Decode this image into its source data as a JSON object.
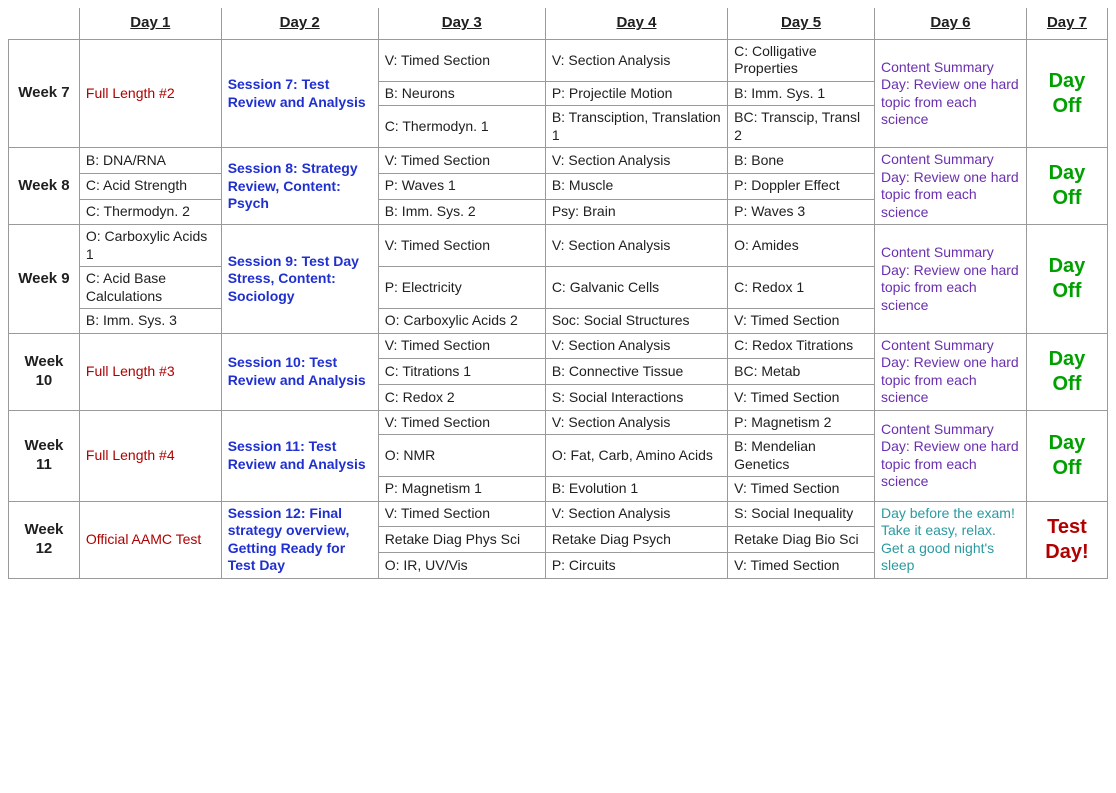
{
  "colors": {
    "text_default": "#202020",
    "red": "#b00000",
    "blue": "#2030d0",
    "purple": "#6a2fb0",
    "teal": "#2a9aa0",
    "green": "#00a000",
    "border": "#9a9a9a",
    "background": "#ffffff"
  },
  "headers": [
    "",
    "Day 1",
    "Day 2",
    "Day 3",
    "Day 4",
    "Day 5",
    "Day 6",
    "Day 7"
  ],
  "content_summary_text": "Content Summary Day: Review one hard topic from each science",
  "day_off_text": "Day Off",
  "weeks": [
    {
      "label": "Week 7",
      "day1": {
        "text": "Full Length #2",
        "color": "red"
      },
      "day2": {
        "text": "Session 7: Test Review and Analysis",
        "color": "blue"
      },
      "rows": [
        {
          "d3": "V: Timed Section",
          "d4": "V: Section Analysis",
          "d5": "C: Colligative Properties"
        },
        {
          "d3": "B: Neurons",
          "d4": "P: Projectile Motion",
          "d5": "B: Imm. Sys. 1"
        },
        {
          "d3": "C: Thermodyn. 1",
          "d4": "B: Transciption, Translation 1",
          "d5": "BC: Transcip, Transl 2"
        }
      ],
      "day6": {
        "text_key": "content_summary",
        "color": "purple"
      },
      "day7": {
        "text": "Day Off",
        "color": "green"
      }
    },
    {
      "label": "Week 8",
      "day1_rows": [
        "B: DNA/RNA",
        "C: Acid Strength",
        "C: Thermodyn. 2"
      ],
      "day2": {
        "text": "Session 8: Strategy Review, Content: Psych",
        "color": "blue"
      },
      "rows": [
        {
          "d3": "V: Timed Section",
          "d4": "V: Section Analysis",
          "d5": "B: Bone"
        },
        {
          "d3": "P: Waves 1",
          "d4": "B: Muscle",
          "d5": "P: Doppler Effect"
        },
        {
          "d3": "B: Imm. Sys. 2",
          "d4": "Psy: Brain",
          "d5": "P: Waves 3"
        }
      ],
      "day6": {
        "text_key": "content_summary",
        "color": "purple"
      },
      "day7": {
        "text": "Day Off",
        "color": "green"
      }
    },
    {
      "label": "Week 9",
      "day1_rows": [
        "O: Carboxylic Acids 1",
        "C: Acid Base Calculations",
        "B: Imm. Sys. 3"
      ],
      "day2": {
        "text": "Session 9: Test Day Stress, Content: Sociology",
        "color": "blue"
      },
      "rows": [
        {
          "d3": "V: Timed Section",
          "d4": "V: Section Analysis",
          "d5": "O: Amides"
        },
        {
          "d3": "P: Electricity",
          "d4": "C: Galvanic Cells",
          "d5": "C: Redox 1"
        },
        {
          "d3": "O: Carboxylic Acids 2",
          "d4": "Soc: Social Structures",
          "d5": "V: Timed Section"
        }
      ],
      "day6": {
        "text_key": "content_summary",
        "color": "purple"
      },
      "day7": {
        "text": "Day Off",
        "color": "green"
      }
    },
    {
      "label": "Week 10",
      "day1": {
        "text": "Full Length #3",
        "color": "red"
      },
      "day2": {
        "text": "Session 10: Test Review and Analysis",
        "color": "blue"
      },
      "rows": [
        {
          "d3": "V: Timed Section",
          "d4": "V: Section Analysis",
          "d5": "C: Redox Titrations"
        },
        {
          "d3": "C: Titrations 1",
          "d4": "B: Connective Tissue",
          "d5": "BC: Metab"
        },
        {
          "d3": "C: Redox 2",
          "d4": "S: Social Interactions",
          "d5": "V: Timed Section"
        }
      ],
      "day6": {
        "text_key": "content_summary",
        "color": "purple"
      },
      "day7": {
        "text": "Day Off",
        "color": "green"
      }
    },
    {
      "label": "Week 11",
      "day1": {
        "text": "Full Length #4",
        "color": "red"
      },
      "day2": {
        "text": "Session 11: Test Review and Analysis",
        "color": "blue"
      },
      "rows": [
        {
          "d3": "V: Timed Section",
          "d4": "V: Section Analysis",
          "d5": "P: Magnetism 2"
        },
        {
          "d3": "O: NMR",
          "d4": "O: Fat, Carb, Amino Acids",
          "d5": "B: Mendelian Genetics"
        },
        {
          "d3": "P: Magnetism 1",
          "d4": "B: Evolution 1",
          "d5": "V: Timed Section"
        }
      ],
      "day6": {
        "text_key": "content_summary",
        "color": "purple"
      },
      "day7": {
        "text": "Day Off",
        "color": "green"
      }
    },
    {
      "label": "Week 12",
      "day1": {
        "text": "Official AAMC Test",
        "color": "red"
      },
      "day2": {
        "text": "Session 12: Final strategy overview, Getting Ready for Test Day",
        "color": "blue"
      },
      "rows": [
        {
          "d3": "V: Timed Section",
          "d4": "V: Section Analysis",
          "d5": "S: Social Inequality"
        },
        {
          "d3": "Retake Diag Phys Sci",
          "d4": "Retake Diag Psych",
          "d5": "Retake Diag Bio Sci"
        },
        {
          "d3": "O: IR, UV/Vis",
          "d4": "P: Circuits",
          "d5": "V: Timed Section"
        }
      ],
      "day6": {
        "text": "Day before the exam! Take it easy, relax. Get a good night's sleep",
        "color": "teal"
      },
      "day7": {
        "text": "Test Day!",
        "color": "red"
      }
    }
  ]
}
